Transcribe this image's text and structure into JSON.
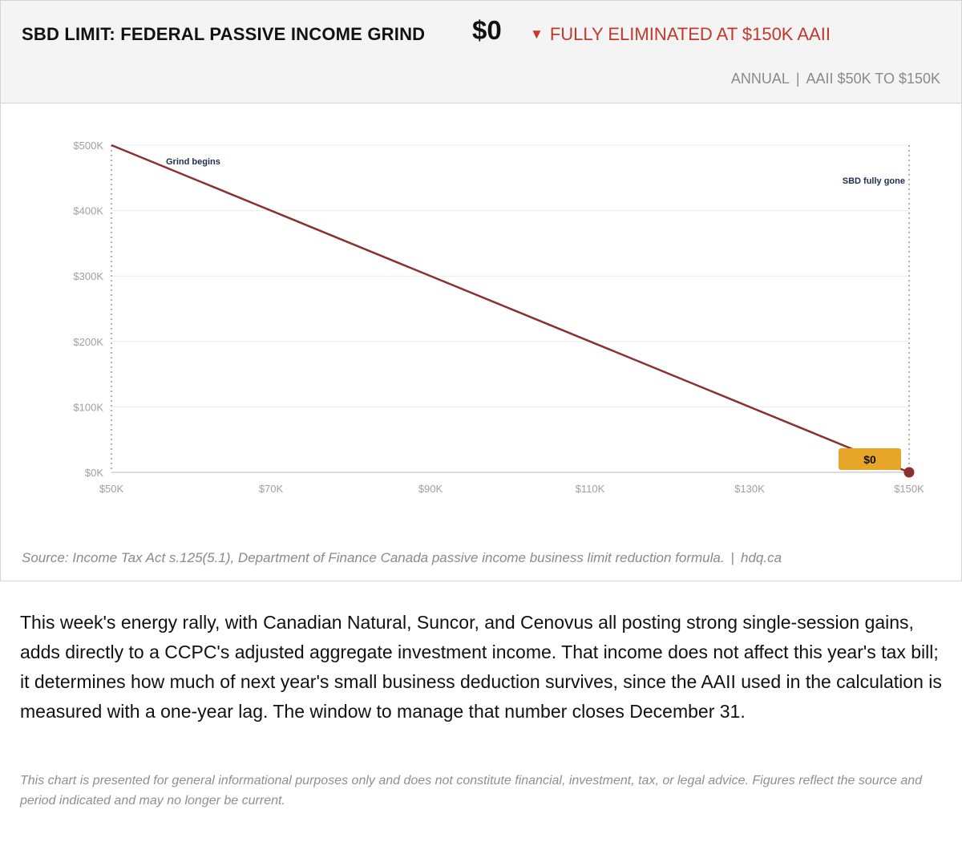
{
  "header": {
    "title": "SBD LIMIT: FEDERAL PASSIVE INCOME GRIND",
    "value": "$0",
    "change_arrow": "▼",
    "change_text": "FULLY ELIMINATED AT $150K AAII",
    "period": "ANNUAL",
    "separator": "|",
    "range": "AAII $50K TO $150K"
  },
  "colors": {
    "line": "#8b3030",
    "endpoint": "#8b3030",
    "badge": "#e8a628",
    "change": "#c0392b"
  },
  "chart_data": {
    "type": "line",
    "title": "SBD LIMIT: FEDERAL PASSIVE INCOME GRIND",
    "xlabel": "",
    "ylabel": "",
    "x": [
      50,
      150
    ],
    "series": [
      {
        "values": [
          500,
          0
        ]
      }
    ],
    "x_ticks": [
      50,
      70,
      90,
      110,
      130,
      150
    ],
    "x_tick_labels": [
      "$50K",
      "$70K",
      "$90K",
      "$110K",
      "$130K",
      "$150K"
    ],
    "y_ticks": [
      0,
      100,
      200,
      300,
      400,
      500
    ],
    "y_tick_labels": [
      "$0K",
      "$100K",
      "$200K",
      "$300K",
      "$400K",
      "$500K"
    ],
    "xlim": [
      50,
      150
    ],
    "ylim": [
      0,
      500
    ],
    "grid": true,
    "annotations": [
      {
        "x": 50,
        "label": "Grind begins"
      },
      {
        "x": 150,
        "label": "SBD fully gone"
      }
    ],
    "end_label": "$0"
  },
  "source": {
    "text": "Source: Income Tax Act s.125(5.1), Department of Finance Canada passive income business limit reduction formula.",
    "separator": "|",
    "site": "hdq.ca"
  },
  "body_text": "This week's energy rally, with Canadian Natural, Suncor, and Cenovus all posting strong single-session gains, adds directly to a CCPC's adjusted aggregate investment income. That income does not affect this year's tax bill; it determines how much of next year's small business deduction survives, since the AAII used in the calculation is measured with a one-year lag. The window to manage that number closes December 31.",
  "disclaimer": "This chart is presented for general informational purposes only and does not constitute financial, investment, tax, or legal advice. Figures reflect the source and period indicated and may no longer be current."
}
